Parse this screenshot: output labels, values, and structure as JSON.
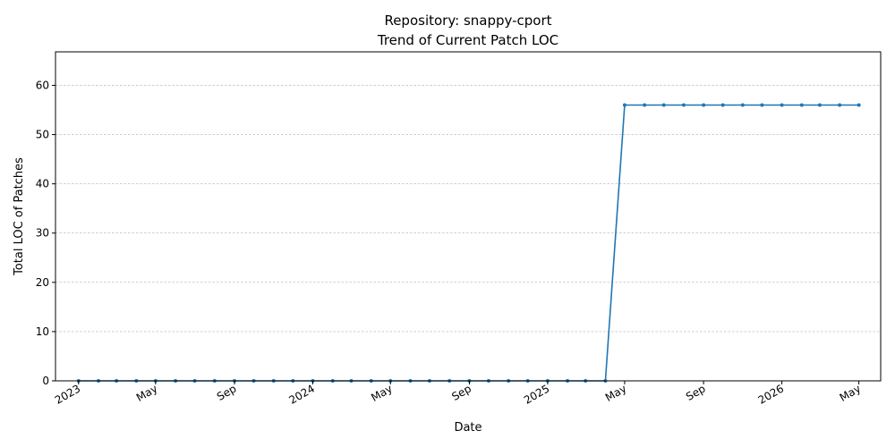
{
  "chart_data": {
    "type": "line",
    "title_line1": "Repository: snappy-cport",
    "title_line2": "Trend of Current Patch LOC",
    "xlabel": "Date",
    "ylabel": "Total LOC of Patches",
    "ylim": [
      0,
      66.8
    ],
    "xlim": [
      "2022-11-26",
      "2026-06-04"
    ],
    "grid": "y",
    "line_color": "#1f77b4",
    "y_ticks": [
      0,
      10,
      20,
      30,
      40,
      50,
      60
    ],
    "x_ticks": [
      {
        "date": "2023-01-01",
        "label": "2023"
      },
      {
        "date": "2023-05-01",
        "label": "May"
      },
      {
        "date": "2023-09-01",
        "label": "Sep"
      },
      {
        "date": "2024-01-01",
        "label": "2024"
      },
      {
        "date": "2024-05-01",
        "label": "May"
      },
      {
        "date": "2024-09-01",
        "label": "Sep"
      },
      {
        "date": "2025-01-01",
        "label": "2025"
      },
      {
        "date": "2025-05-01",
        "label": "May"
      },
      {
        "date": "2025-09-01",
        "label": "Sep"
      },
      {
        "date": "2026-01-01",
        "label": "2026"
      },
      {
        "date": "2026-05-01",
        "label": "May"
      }
    ],
    "series": [
      {
        "x": [
          "2023-01-01",
          "2023-02-01",
          "2023-03-01",
          "2023-04-01",
          "2023-05-01",
          "2023-06-01",
          "2023-07-01",
          "2023-08-01",
          "2023-09-01",
          "2023-10-01",
          "2023-11-01",
          "2023-12-01",
          "2024-01-01",
          "2024-02-01",
          "2024-03-01",
          "2024-04-01",
          "2024-05-01",
          "2024-06-01",
          "2024-07-01",
          "2024-08-01",
          "2024-09-01",
          "2024-10-01",
          "2024-11-01",
          "2024-12-01",
          "2025-01-01",
          "2025-02-01",
          "2025-03-01",
          "2025-04-01",
          "2025-05-01",
          "2025-06-01",
          "2025-07-01",
          "2025-08-01",
          "2025-09-01",
          "2025-10-01",
          "2025-11-01",
          "2025-12-01",
          "2026-01-01",
          "2026-02-01",
          "2026-03-01",
          "2026-04-01",
          "2026-05-01"
        ],
        "values": [
          0,
          0,
          0,
          0,
          0,
          0,
          0,
          0,
          0,
          0,
          0,
          0,
          0,
          0,
          0,
          0,
          0,
          0,
          0,
          0,
          0,
          0,
          0,
          0,
          0,
          0,
          0,
          0,
          56,
          56,
          56,
          56,
          56,
          56,
          56,
          56,
          56,
          56,
          56,
          56,
          56
        ]
      }
    ]
  }
}
